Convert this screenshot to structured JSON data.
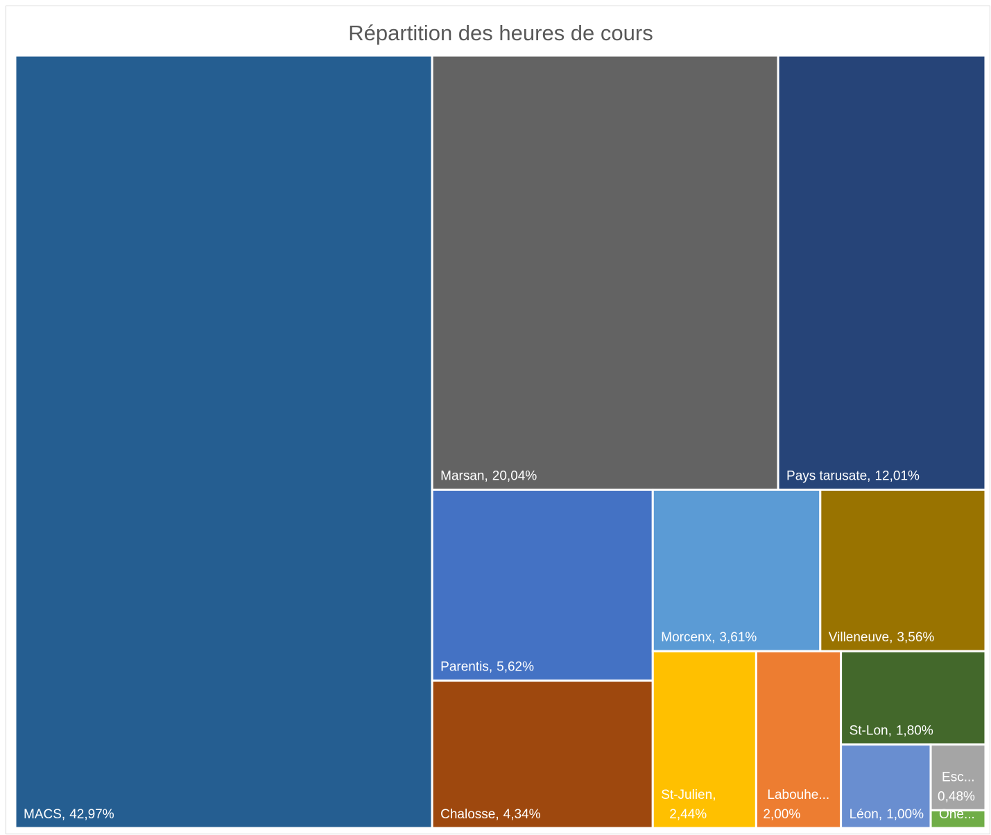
{
  "chart_data": {
    "type": "treemap",
    "title": "Répartition des heures de cours",
    "categories": [
      "MACS,",
      "Marsan,",
      "Pays tarusate,",
      "Parentis,",
      "Chalosse,",
      "Morcenx,",
      "Villeneuve,",
      "St-Julien,",
      "Labouhe...",
      "St-Lon,",
      "Léon,",
      "Esc...",
      "One..."
    ],
    "values": [
      42.97,
      20.04,
      12.01,
      5.62,
      4.34,
      3.61,
      3.56,
      2.44,
      2.0,
      1.8,
      1.0,
      0.48,
      0.13
    ],
    "value_labels": [
      "42,97%",
      "20,04%",
      "12,01%",
      "5,62%",
      "4,34%",
      "3,61%",
      "3,56%",
      "2,44%",
      "2,00%",
      "1,80%",
      "1,00%",
      "0,48%",
      null
    ],
    "colors": [
      "#255e91",
      "#636363",
      "#264478",
      "#4472c4",
      "#9e480e",
      "#5b9bd5",
      "#997300",
      "#ffc000",
      "#ed7d31",
      "#43682b",
      "#698ed0",
      "#a5a5a5",
      "#70ad47"
    ]
  }
}
